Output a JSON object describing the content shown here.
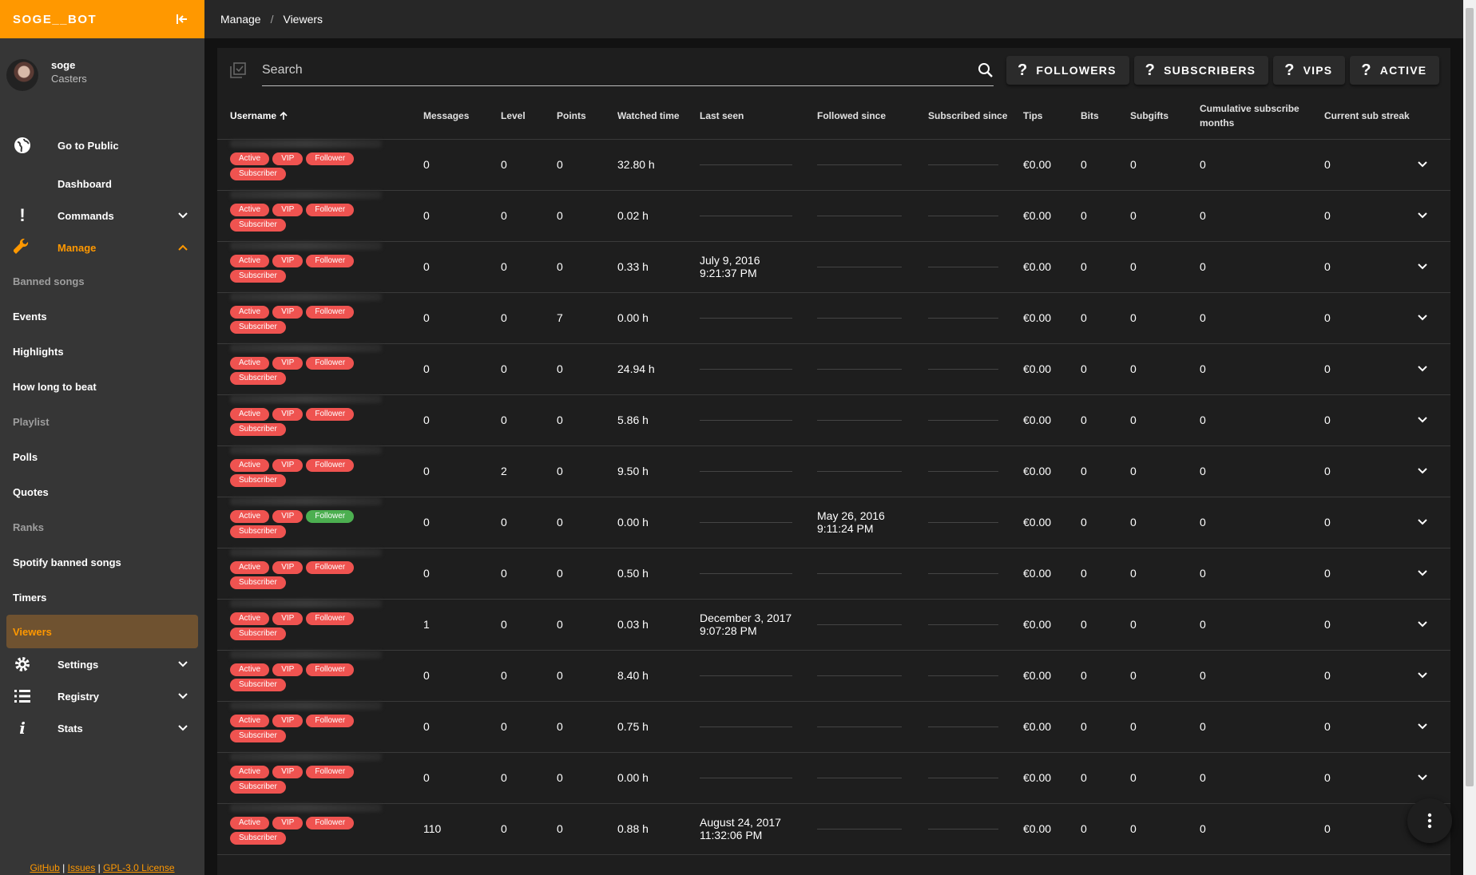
{
  "brand": {
    "name": "SOGE__BOT"
  },
  "user": {
    "name": "soge",
    "role": "Casters"
  },
  "nav": {
    "go_public": "Go to Public",
    "dashboard": "Dashboard",
    "commands": "Commands",
    "manage": "Manage",
    "manage_items": [
      {
        "label": "Banned songs",
        "dim": true
      },
      {
        "label": "Events",
        "dim": false
      },
      {
        "label": "Highlights",
        "dim": false
      },
      {
        "label": "How long to beat",
        "dim": false
      },
      {
        "label": "Playlist",
        "dim": true
      },
      {
        "label": "Polls",
        "dim": false
      },
      {
        "label": "Quotes",
        "dim": false
      },
      {
        "label": "Ranks",
        "dim": true
      },
      {
        "label": "Spotify banned songs",
        "dim": false
      },
      {
        "label": "Timers",
        "dim": false
      },
      {
        "label": "Viewers",
        "dim": false,
        "active": true
      }
    ],
    "settings": "Settings",
    "registry": "Registry",
    "stats": "Stats"
  },
  "footer": {
    "github": "GitHub",
    "issues": "Issues",
    "license": "GPL-3.0 License",
    "sep": "|"
  },
  "breadcrumb": {
    "section": "Manage",
    "sep": "/",
    "page": "Viewers"
  },
  "search": {
    "placeholder": "Search"
  },
  "filters": [
    {
      "label": "FOLLOWERS"
    },
    {
      "label": "SUBSCRIBERS"
    },
    {
      "label": "VIPS"
    },
    {
      "label": "ACTIVE"
    }
  ],
  "columns": {
    "username": "Username",
    "messages": "Messages",
    "level": "Level",
    "points": "Points",
    "watched": "Watched time",
    "lastseen": "Last seen",
    "followed": "Followed since",
    "subscribed": "Subscribed since",
    "tips": "Tips",
    "bits": "Bits",
    "subgifts": "Subgifts",
    "cumulative": "Cumulative subscribe months",
    "streak": "Current sub streak"
  },
  "chips": {
    "active": "Active",
    "vip": "VIP",
    "follower": "Follower",
    "subscriber": "Subscriber"
  },
  "colors": {
    "accent": "#ff9800",
    "chip_red": "#ef5350",
    "chip_green": "#4caf50"
  },
  "rows": [
    {
      "messages": "0",
      "level": "0",
      "points": "0",
      "watched": "32.80 h",
      "last_seen_date": "",
      "last_seen_time": "",
      "followed_date": "",
      "followed_time": "",
      "follower_green": false,
      "tips": "€0.00",
      "bits": "0",
      "subgifts": "0",
      "cumulative": "0",
      "streak": "0"
    },
    {
      "messages": "0",
      "level": "0",
      "points": "0",
      "watched": "0.02 h",
      "last_seen_date": "",
      "last_seen_time": "",
      "followed_date": "",
      "followed_time": "",
      "follower_green": false,
      "tips": "€0.00",
      "bits": "0",
      "subgifts": "0",
      "cumulative": "0",
      "streak": "0"
    },
    {
      "messages": "0",
      "level": "0",
      "points": "0",
      "watched": "0.33 h",
      "last_seen_date": "July 9, 2016",
      "last_seen_time": "9:21:37 PM",
      "followed_date": "",
      "followed_time": "",
      "follower_green": false,
      "tips": "€0.00",
      "bits": "0",
      "subgifts": "0",
      "cumulative": "0",
      "streak": "0"
    },
    {
      "messages": "0",
      "level": "0",
      "points": "7",
      "watched": "0.00 h",
      "last_seen_date": "",
      "last_seen_time": "",
      "followed_date": "",
      "followed_time": "",
      "follower_green": false,
      "tips": "€0.00",
      "bits": "0",
      "subgifts": "0",
      "cumulative": "0",
      "streak": "0"
    },
    {
      "messages": "0",
      "level": "0",
      "points": "0",
      "watched": "24.94 h",
      "last_seen_date": "",
      "last_seen_time": "",
      "followed_date": "",
      "followed_time": "",
      "follower_green": false,
      "tips": "€0.00",
      "bits": "0",
      "subgifts": "0",
      "cumulative": "0",
      "streak": "0"
    },
    {
      "messages": "0",
      "level": "0",
      "points": "0",
      "watched": "5.86 h",
      "last_seen_date": "",
      "last_seen_time": "",
      "followed_date": "",
      "followed_time": "",
      "follower_green": false,
      "tips": "€0.00",
      "bits": "0",
      "subgifts": "0",
      "cumulative": "0",
      "streak": "0"
    },
    {
      "messages": "0",
      "level": "2",
      "points": "0",
      "watched": "9.50 h",
      "last_seen_date": "",
      "last_seen_time": "",
      "followed_date": "",
      "followed_time": "",
      "follower_green": false,
      "tips": "€0.00",
      "bits": "0",
      "subgifts": "0",
      "cumulative": "0",
      "streak": "0"
    },
    {
      "messages": "0",
      "level": "0",
      "points": "0",
      "watched": "0.00 h",
      "last_seen_date": "",
      "last_seen_time": "",
      "followed_date": "May 26, 2016",
      "followed_time": "9:11:24 PM",
      "follower_green": true,
      "tips": "€0.00",
      "bits": "0",
      "subgifts": "0",
      "cumulative": "0",
      "streak": "0"
    },
    {
      "messages": "0",
      "level": "0",
      "points": "0",
      "watched": "0.50 h",
      "last_seen_date": "",
      "last_seen_time": "",
      "followed_date": "",
      "followed_time": "",
      "follower_green": false,
      "tips": "€0.00",
      "bits": "0",
      "subgifts": "0",
      "cumulative": "0",
      "streak": "0"
    },
    {
      "messages": "1",
      "level": "0",
      "points": "0",
      "watched": "0.03 h",
      "last_seen_date": "December 3, 2017",
      "last_seen_time": "9:07:28 PM",
      "followed_date": "",
      "followed_time": "",
      "follower_green": false,
      "tips": "€0.00",
      "bits": "0",
      "subgifts": "0",
      "cumulative": "0",
      "streak": "0"
    },
    {
      "messages": "0",
      "level": "0",
      "points": "0",
      "watched": "8.40 h",
      "last_seen_date": "",
      "last_seen_time": "",
      "followed_date": "",
      "followed_time": "",
      "follower_green": false,
      "tips": "€0.00",
      "bits": "0",
      "subgifts": "0",
      "cumulative": "0",
      "streak": "0"
    },
    {
      "messages": "0",
      "level": "0",
      "points": "0",
      "watched": "0.75 h",
      "last_seen_date": "",
      "last_seen_time": "",
      "followed_date": "",
      "followed_time": "",
      "follower_green": false,
      "tips": "€0.00",
      "bits": "0",
      "subgifts": "0",
      "cumulative": "0",
      "streak": "0"
    },
    {
      "messages": "0",
      "level": "0",
      "points": "0",
      "watched": "0.00 h",
      "last_seen_date": "",
      "last_seen_time": "",
      "followed_date": "",
      "followed_time": "",
      "follower_green": false,
      "tips": "€0.00",
      "bits": "0",
      "subgifts": "0",
      "cumulative": "0",
      "streak": "0"
    },
    {
      "messages": "110",
      "level": "0",
      "points": "0",
      "watched": "0.88 h",
      "last_seen_date": "August 24, 2017",
      "last_seen_time": "11:32:06 PM",
      "followed_date": "",
      "followed_time": "",
      "follower_green": false,
      "tips": "€0.00",
      "bits": "0",
      "subgifts": "0",
      "cumulative": "0",
      "streak": "0"
    }
  ]
}
